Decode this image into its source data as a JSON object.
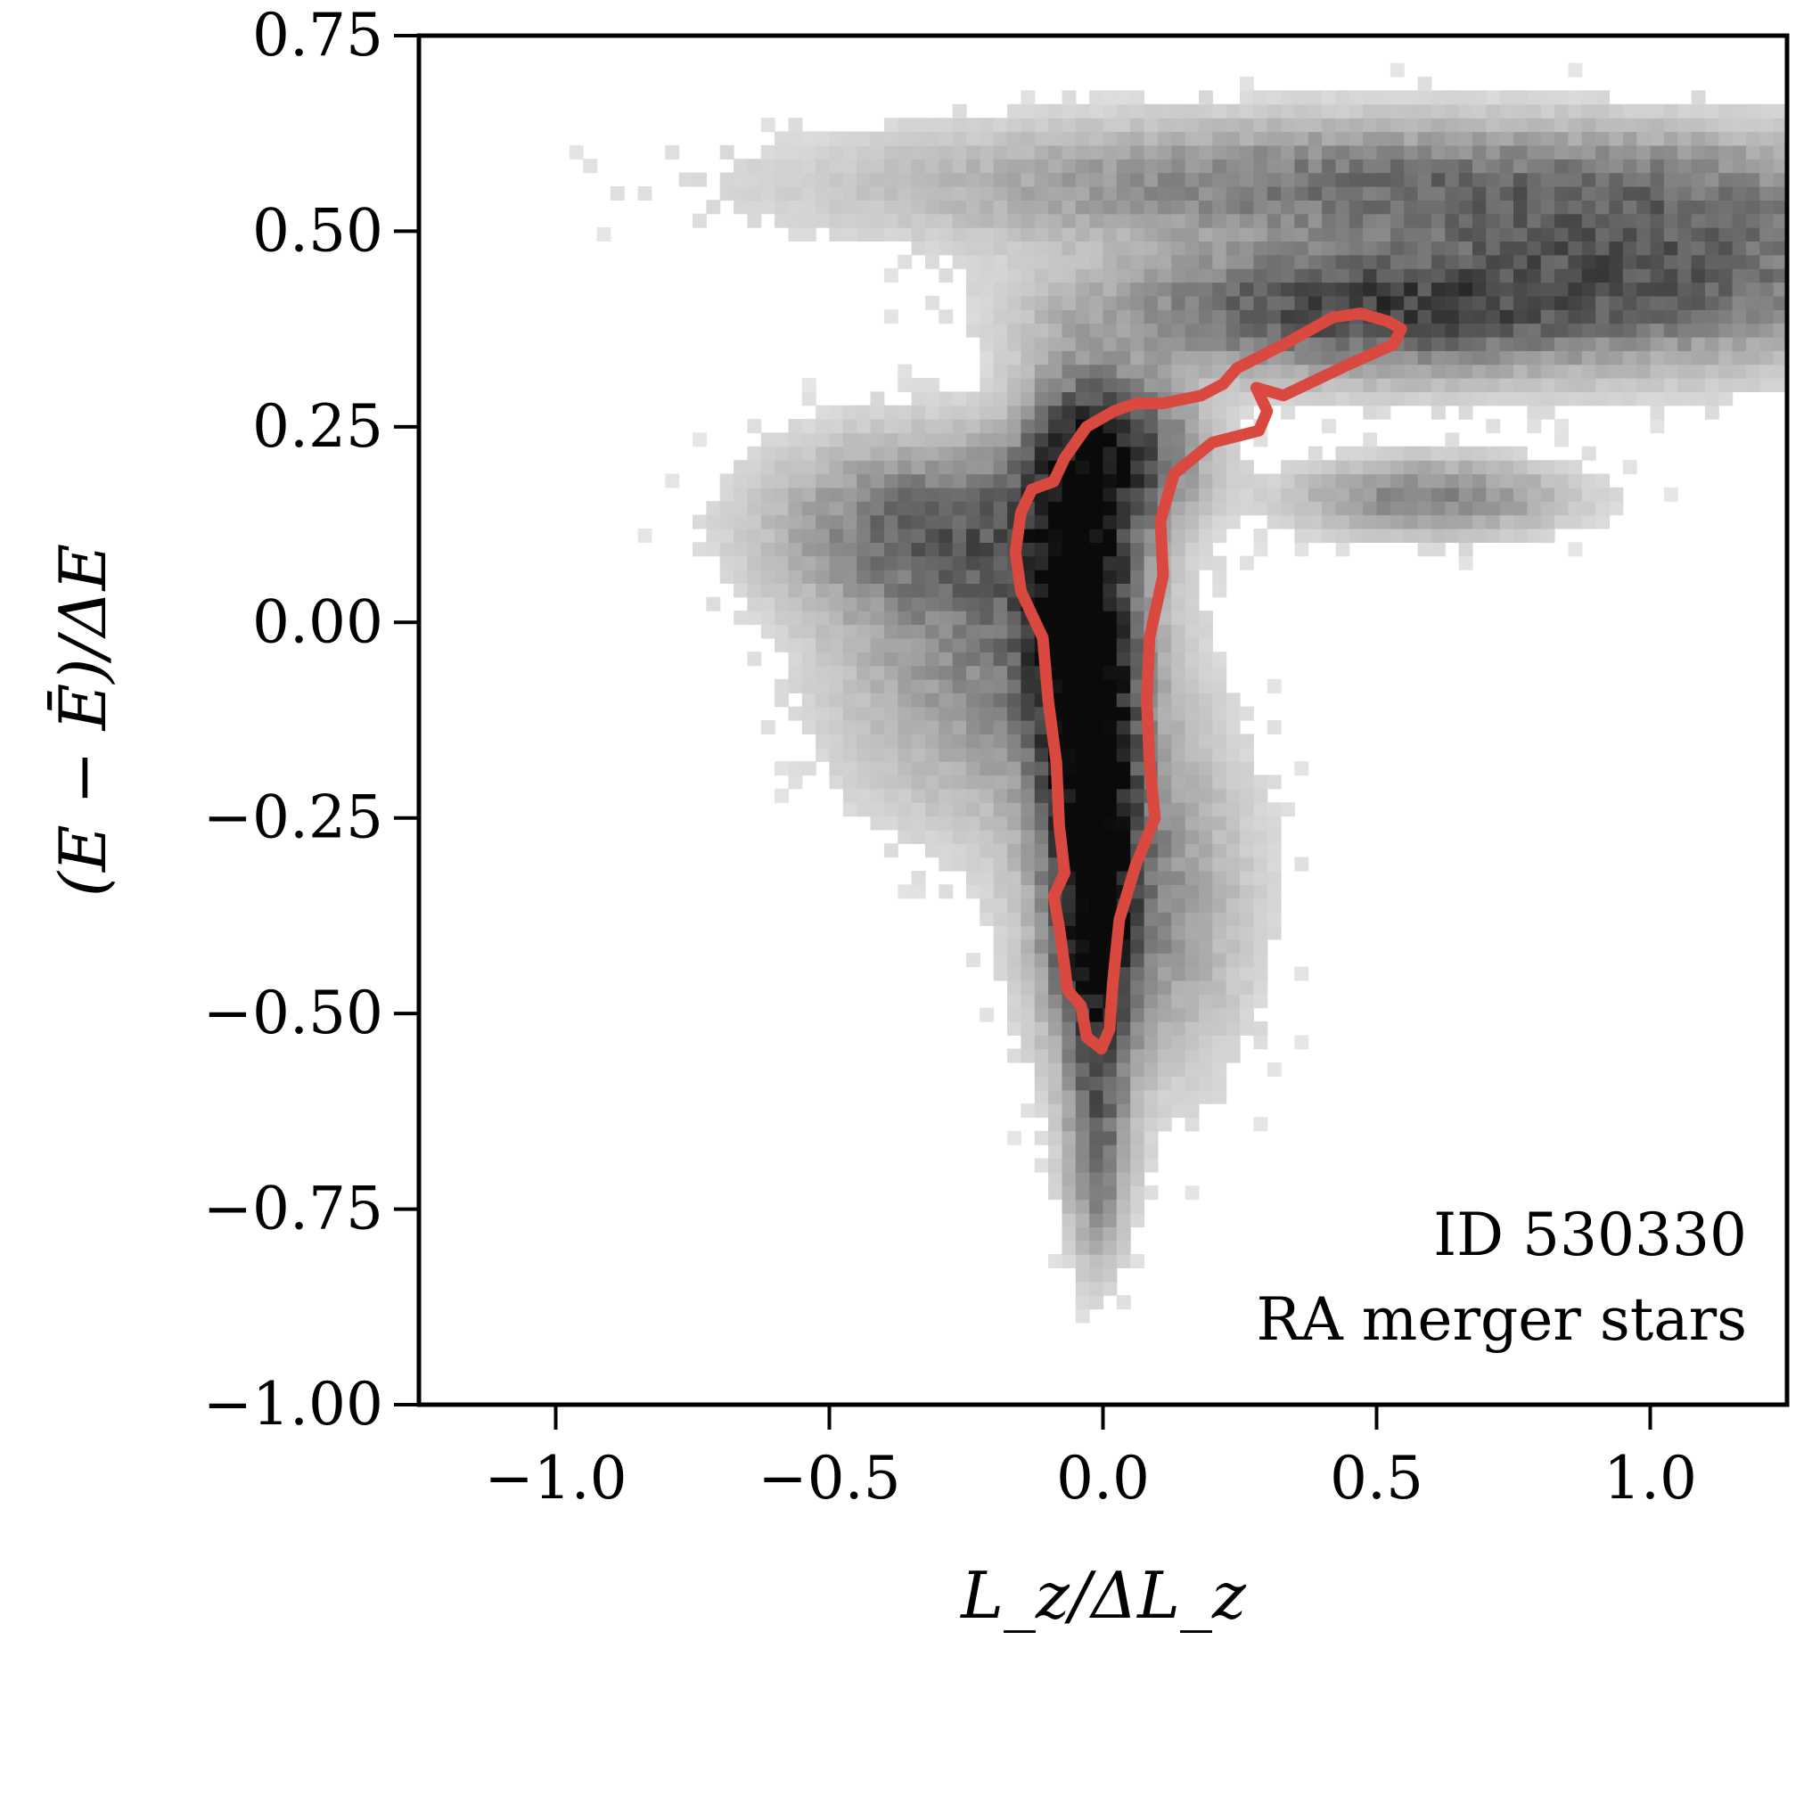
{
  "chart_data": {
    "type": "heatmap",
    "title": "",
    "xlabel": "L_z/ΔL_z",
    "ylabel": "(E − Ē)/ΔE",
    "xlim": [
      -1.25,
      1.25
    ],
    "ylim": [
      -1.0,
      0.75
    ],
    "x_ticks": [
      {
        "value": -1.0,
        "label": "−1.0"
      },
      {
        "value": -0.5,
        "label": "−0.5"
      },
      {
        "value": 0.0,
        "label": "0.0"
      },
      {
        "value": 0.5,
        "label": "0.5"
      },
      {
        "value": 1.0,
        "label": "1.0"
      }
    ],
    "y_ticks": [
      {
        "value": 0.75,
        "label": "0.75"
      },
      {
        "value": 0.5,
        "label": "0.50"
      },
      {
        "value": 0.25,
        "label": "0.25"
      },
      {
        "value": 0.0,
        "label": "0.00"
      },
      {
        "value": -0.25,
        "label": "−0.25"
      },
      {
        "value": -0.5,
        "label": "−0.50"
      },
      {
        "value": -0.75,
        "label": "−0.75"
      },
      {
        "value": -1.0,
        "label": "−1.00"
      }
    ],
    "annotation_lines": [
      "ID 530330",
      "RA merger stars"
    ],
    "colormap": "greys",
    "contour_color": "#d9493f",
    "contour": [
      [
        -0.003,
        -0.545
      ],
      [
        0.012,
        -0.52
      ],
      [
        0.018,
        -0.46
      ],
      [
        0.03,
        -0.38
      ],
      [
        0.06,
        -0.31
      ],
      [
        0.095,
        -0.25
      ],
      [
        0.085,
        -0.18
      ],
      [
        0.08,
        -0.1
      ],
      [
        0.085,
        -0.02
      ],
      [
        0.11,
        0.06
      ],
      [
        0.105,
        0.13
      ],
      [
        0.13,
        0.19
      ],
      [
        0.2,
        0.23
      ],
      [
        0.285,
        0.245
      ],
      [
        0.3,
        0.27
      ],
      [
        0.28,
        0.3
      ],
      [
        0.33,
        0.29
      ],
      [
        0.45,
        0.33
      ],
      [
        0.53,
        0.355
      ],
      [
        0.545,
        0.375
      ],
      [
        0.52,
        0.385
      ],
      [
        0.47,
        0.395
      ],
      [
        0.42,
        0.39
      ],
      [
        0.33,
        0.355
      ],
      [
        0.245,
        0.325
      ],
      [
        0.22,
        0.305
      ],
      [
        0.18,
        0.29
      ],
      [
        0.11,
        0.28
      ],
      [
        0.06,
        0.28
      ],
      [
        0.02,
        0.27
      ],
      [
        -0.03,
        0.25
      ],
      [
        -0.07,
        0.21
      ],
      [
        -0.09,
        0.18
      ],
      [
        -0.13,
        0.17
      ],
      [
        -0.15,
        0.14
      ],
      [
        -0.16,
        0.09
      ],
      [
        -0.15,
        0.04
      ],
      [
        -0.11,
        -0.02
      ],
      [
        -0.1,
        -0.1
      ],
      [
        -0.085,
        -0.18
      ],
      [
        -0.08,
        -0.26
      ],
      [
        -0.07,
        -0.32
      ],
      [
        -0.09,
        -0.35
      ],
      [
        -0.08,
        -0.39
      ],
      [
        -0.07,
        -0.44
      ],
      [
        -0.065,
        -0.47
      ],
      [
        -0.04,
        -0.49
      ],
      [
        -0.03,
        -0.53
      ]
    ],
    "density_components": [
      {
        "name": "core-upper",
        "x": -0.05,
        "y": 0.05,
        "sx": 0.065,
        "sy": 0.14,
        "weight": 0.95
      },
      {
        "name": "core-mid",
        "x": -0.02,
        "y": -0.2,
        "sx": 0.055,
        "sy": 0.14,
        "weight": 1.0
      },
      {
        "name": "core-lower",
        "x": -0.01,
        "y": -0.42,
        "sx": 0.045,
        "sy": 0.09,
        "weight": 0.85
      },
      {
        "name": "tail",
        "x": -0.01,
        "y": -0.66,
        "sx": 0.035,
        "sy": 0.09,
        "weight": 0.45
      },
      {
        "name": "neck",
        "x": 0.02,
        "y": 0.22,
        "sx": 0.09,
        "sy": 0.06,
        "weight": 0.7
      },
      {
        "name": "left-wing",
        "x": -0.3,
        "y": 0.12,
        "sx": 0.18,
        "sy": 0.07,
        "weight": 0.45
      },
      {
        "name": "left-halo",
        "x": -0.2,
        "y": -0.05,
        "sx": 0.17,
        "sy": 0.12,
        "weight": 0.3
      },
      {
        "name": "lower-spread",
        "x": 0.06,
        "y": -0.35,
        "sx": 0.12,
        "sy": 0.14,
        "weight": 0.3
      },
      {
        "name": "right-band",
        "x": 0.45,
        "y": 0.4,
        "sx": 0.28,
        "sy": 0.05,
        "weight": 0.6
      },
      {
        "name": "right-band-far",
        "x": 1.0,
        "y": 0.45,
        "sx": 0.3,
        "sy": 0.07,
        "weight": 0.5
      },
      {
        "name": "top-band",
        "x": 0.55,
        "y": 0.56,
        "sx": 0.55,
        "sy": 0.05,
        "weight": 0.4
      },
      {
        "name": "right-finger",
        "x": 0.6,
        "y": 0.16,
        "sx": 0.15,
        "sy": 0.03,
        "weight": 0.35
      }
    ]
  }
}
